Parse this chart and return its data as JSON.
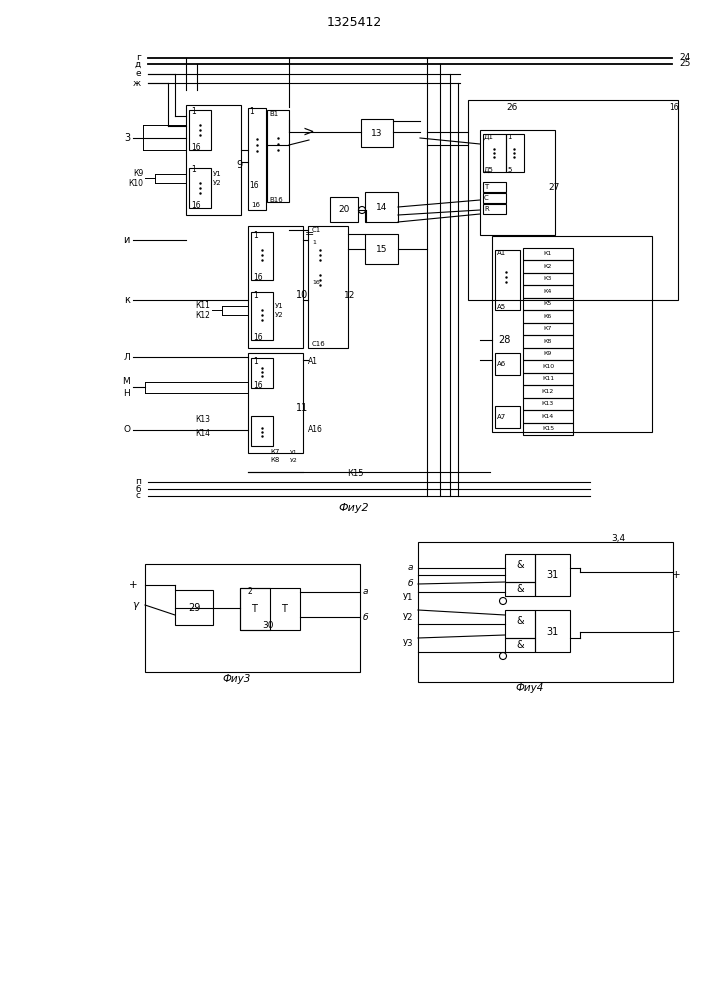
{
  "title": "1325412",
  "bg_color": "#ffffff",
  "line_color": "#000000",
  "fig2_caption": "Фиу2",
  "fig3_caption": "Фиу3",
  "fig4_caption": "Фиу4"
}
